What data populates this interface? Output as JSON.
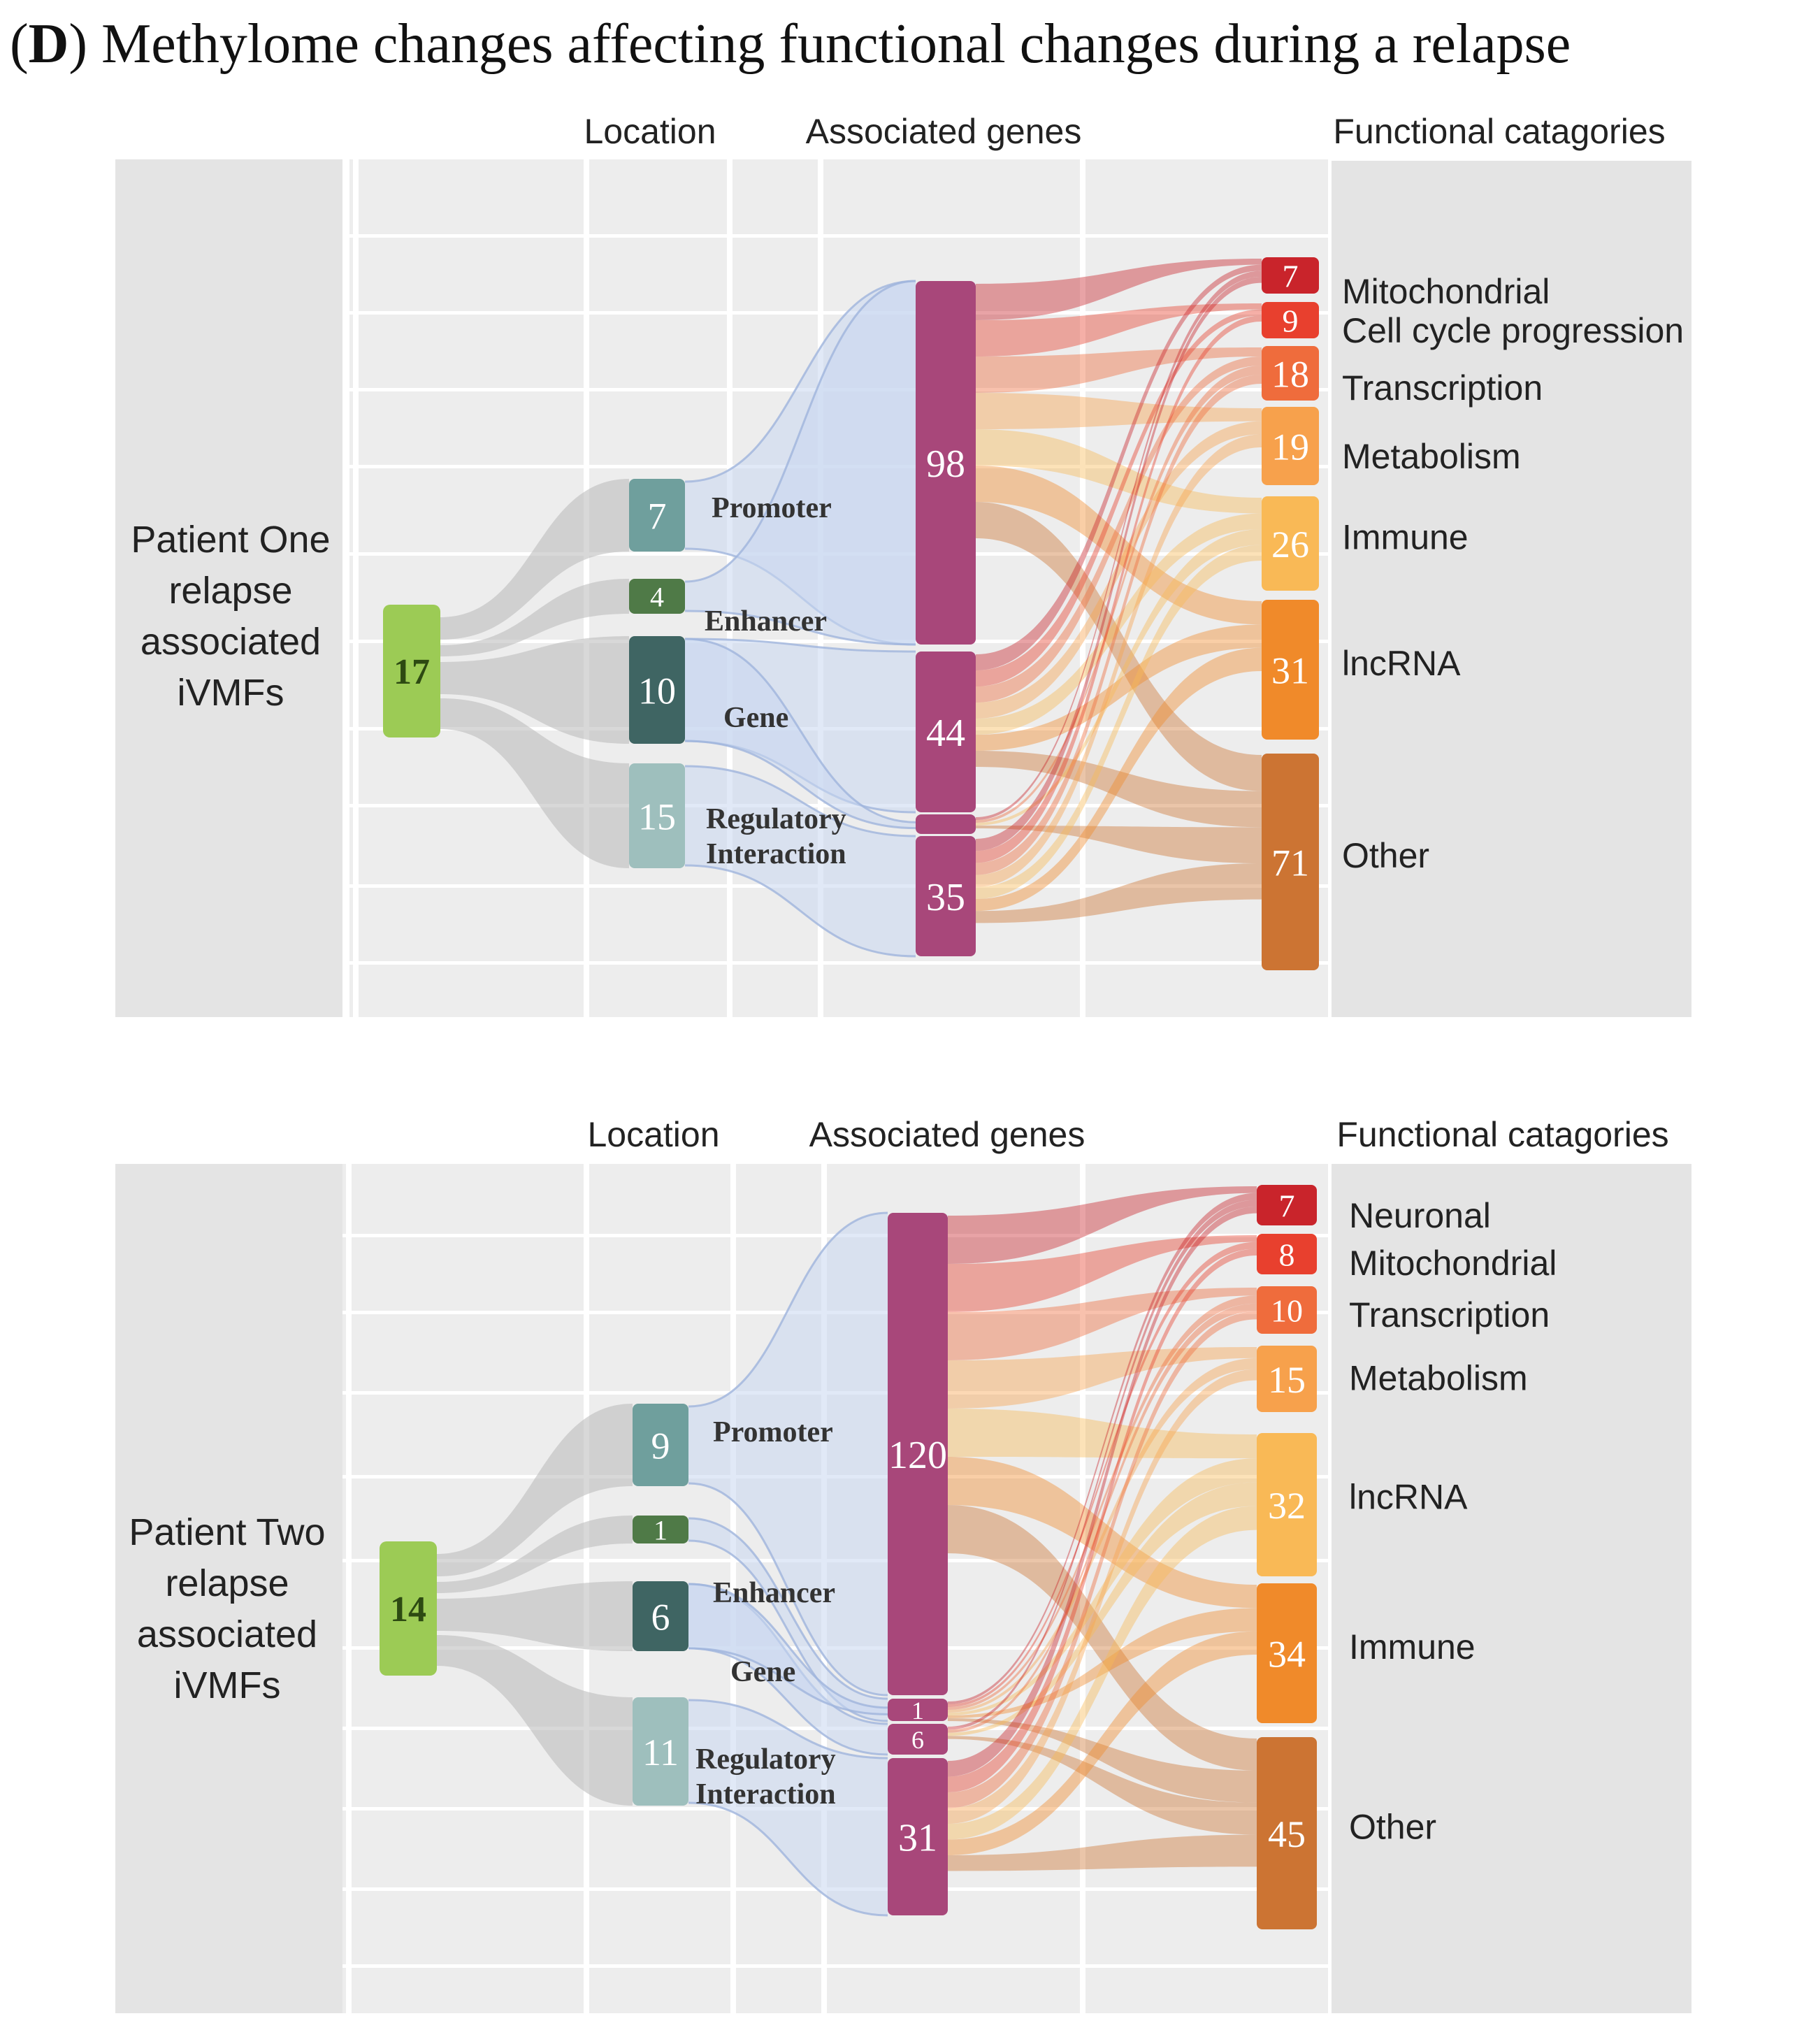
{
  "title": {
    "letter": "D",
    "text": "Methylome changes affecting functional changes during a relapse"
  },
  "panels": [
    {
      "id": "p1",
      "column_headers": {
        "location": "Location",
        "genes": "Associated genes",
        "functional": "Functional catagories"
      },
      "patient_label": [
        "Patient One",
        "relapse",
        "associated",
        "iVMFs"
      ],
      "source": {
        "value": "17"
      },
      "locations": [
        {
          "label": "Promoter",
          "value": "7"
        },
        {
          "label": "Enhancer",
          "value": "4"
        },
        {
          "label": "Gene",
          "value": "10"
        },
        {
          "label": "Regulatory Interaction",
          "value": "15"
        }
      ],
      "gene_nodes": [
        {
          "value": "98"
        },
        {
          "value": "44"
        },
        {
          "value": ""
        },
        {
          "value": "35"
        }
      ],
      "categories": [
        {
          "label": "Mitochondrial",
          "value": "7",
          "color": "#c9242b"
        },
        {
          "label": "Cell cycle progression",
          "value": "9",
          "color": "#e8402e"
        },
        {
          "label": "Transcription",
          "value": "18",
          "color": "#ef6c3c"
        },
        {
          "label": "Metabolism",
          "value": "19",
          "color": "#f7a14c"
        },
        {
          "label": "Immune",
          "value": "26",
          "color": "#f9b956"
        },
        {
          "label": "lncRNA",
          "value": "31",
          "color": "#f08a2a"
        },
        {
          "label": "Other",
          "value": "71",
          "color": "#cc7433"
        }
      ]
    },
    {
      "id": "p2",
      "column_headers": {
        "location": "Location",
        "genes": "Associated genes",
        "functional": "Functional catagories"
      },
      "patient_label": [
        "Patient Two",
        "relapse",
        "associated",
        "iVMFs"
      ],
      "source": {
        "value": "14"
      },
      "locations": [
        {
          "label": "Promoter",
          "value": "9"
        },
        {
          "label": "",
          "value": "1"
        },
        {
          "label": "Enhancer",
          "value": "6"
        },
        {
          "label": "Regulatory Interaction",
          "value": "11"
        }
      ],
      "extra_label": "Gene",
      "gene_nodes": [
        {
          "value": "120"
        },
        {
          "value": "1"
        },
        {
          "value": "6"
        },
        {
          "value": "31"
        }
      ],
      "categories": [
        {
          "label": "Neuronal",
          "value": "7",
          "color": "#c9242b"
        },
        {
          "label": "Mitochondrial",
          "value": "8",
          "color": "#e8402e"
        },
        {
          "label": "Transcription",
          "value": "10",
          "color": "#ef6c3c"
        },
        {
          "label": "Metabolism",
          "value": "15",
          "color": "#f7a14c"
        },
        {
          "label": "lncRNA",
          "value": "32",
          "color": "#f9b956"
        },
        {
          "label": "Immune",
          "value": "34",
          "color": "#f08a2a"
        },
        {
          "label": "Other",
          "value": "45",
          "color": "#cc7433"
        }
      ]
    }
  ],
  "colors": {
    "source": "#9ccb55",
    "gene": "#a8477a",
    "loc_promoter": "#6f9f9d",
    "loc_enhancer": "#4f7a47",
    "loc_gene": "#3f6563",
    "loc_regulatory": "#9ebfbd"
  }
}
